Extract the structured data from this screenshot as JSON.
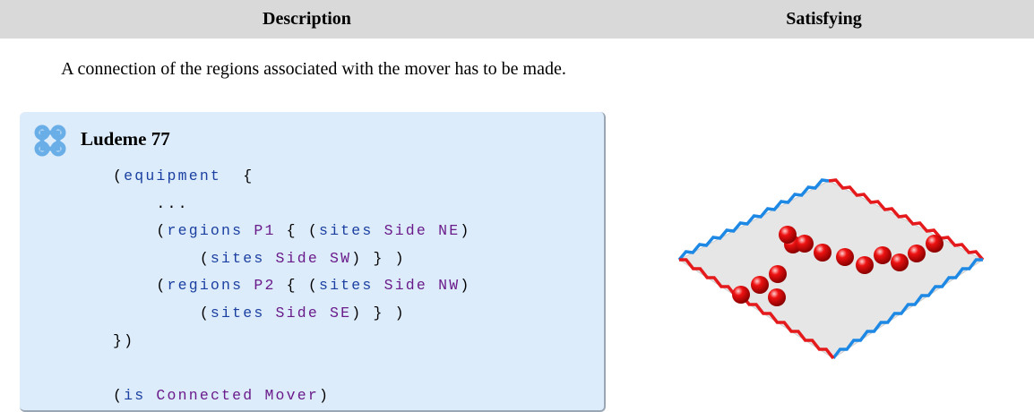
{
  "table": {
    "header": [
      "Description",
      "Satisfying"
    ],
    "description": "A connection of the regions associated with the mover has to be made.",
    "ludeme": {
      "title": "Ludeme 77",
      "code": [
        [
          {
            "text": "(",
            "color": "#000000"
          },
          {
            "text": "equipment",
            "color": "#1a3fa0"
          },
          {
            "text": "  {",
            "color": "#000000"
          }
        ],
        [
          {
            "text": "    ...",
            "color": "#000000"
          }
        ],
        [
          {
            "text": "    (",
            "color": "#000000"
          },
          {
            "text": "regions",
            "color": "#1a3fa0"
          },
          {
            "text": " P1",
            "color": "#6a1b8a"
          },
          {
            "text": " { (",
            "color": "#000000"
          },
          {
            "text": "sites",
            "color": "#1a3fa0"
          },
          {
            "text": " Side NE",
            "color": "#6a1b8a"
          },
          {
            "text": ")",
            "color": "#000000"
          }
        ],
        [
          {
            "text": "        (",
            "color": "#000000"
          },
          {
            "text": "sites",
            "color": "#1a3fa0"
          },
          {
            "text": " Side SW",
            "color": "#6a1b8a"
          },
          {
            "text": ") } )",
            "color": "#000000"
          }
        ],
        [
          {
            "text": "    (",
            "color": "#000000"
          },
          {
            "text": "regions",
            "color": "#1a3fa0"
          },
          {
            "text": " P2",
            "color": "#6a1b8a"
          },
          {
            "text": " { (",
            "color": "#000000"
          },
          {
            "text": "sites",
            "color": "#1a3fa0"
          },
          {
            "text": " Side NW",
            "color": "#6a1b8a"
          },
          {
            "text": ")",
            "color": "#000000"
          }
        ],
        [
          {
            "text": "        (",
            "color": "#000000"
          },
          {
            "text": "sites",
            "color": "#1a3fa0"
          },
          {
            "text": " Side SE",
            "color": "#6a1b8a"
          },
          {
            "text": ") } )",
            "color": "#000000"
          }
        ],
        [
          {
            "text": "})",
            "color": "#000000"
          }
        ],
        [],
        [
          {
            "text": "(",
            "color": "#000000"
          },
          {
            "text": "is",
            "color": "#1a3fa0"
          },
          {
            "text": " Connected Mover",
            "color": "#6a1b8a"
          },
          {
            "text": ")",
            "color": "#000000"
          }
        ]
      ]
    }
  }
}
